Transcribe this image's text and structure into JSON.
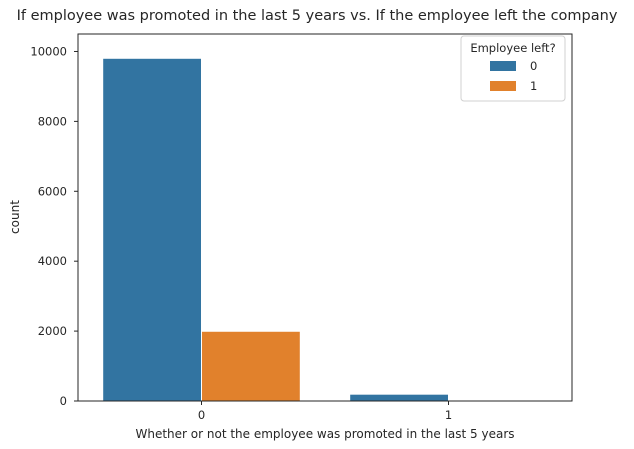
{
  "chart_data": {
    "type": "bar",
    "title": "If employee was promoted in the last 5 years vs. If the employee left the company",
    "xlabel": "Whether or not the employee was promoted in the last 5 years",
    "ylabel": "count",
    "categories": [
      "0",
      "1"
    ],
    "series": [
      {
        "name": "0",
        "values": [
          9805,
          195
        ],
        "color": "#3274a1"
      },
      {
        "name": "1",
        "values": [
          1995,
          0
        ],
        "color": "#e1812c"
      }
    ],
    "ylim": [
      0,
      10500
    ],
    "yticks": [
      0,
      2000,
      4000,
      6000,
      8000,
      10000
    ],
    "legend": {
      "title": "Employee left?",
      "placement": "top-right"
    },
    "grid": false
  }
}
